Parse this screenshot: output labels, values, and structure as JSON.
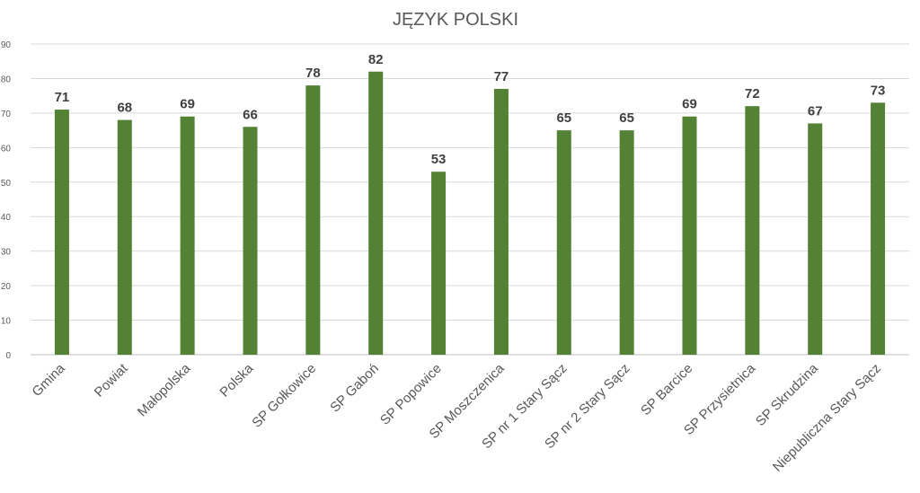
{
  "chart_data": {
    "type": "bar",
    "title": "JĘZYK POLSKI",
    "categories": [
      "Gmina",
      "Powiat",
      "Małopolska",
      "Polska",
      "SP Gołkowice",
      "SP Gaboń",
      "SP Popowice",
      "SP Moszczenica",
      "SP nr 1 Stary Sącz",
      "SP nr 2 Stary Sącz",
      "SP Barcice",
      "SP Przysietnica",
      "SP Skrudzina",
      "Niepubliczna Stary Sącz"
    ],
    "values": [
      71,
      68,
      69,
      66,
      78,
      82,
      53,
      77,
      65,
      65,
      69,
      72,
      67,
      73
    ],
    "ylim": [
      0,
      90
    ],
    "yticks": [
      0,
      10,
      20,
      30,
      40,
      50,
      60,
      70,
      80,
      90
    ],
    "grid": true,
    "legend": "none",
    "bar_color": "#548235"
  }
}
